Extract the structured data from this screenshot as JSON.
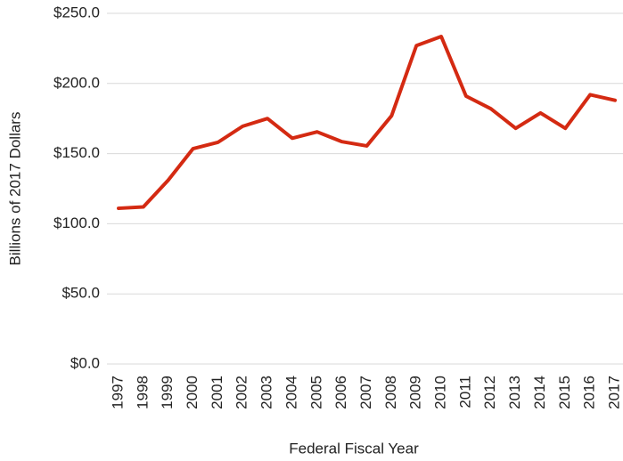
{
  "chart_data": {
    "type": "line",
    "xlabel": "Federal Fiscal Year",
    "ylabel": "Billions of 2017 Dollars",
    "categories": [
      "1997",
      "1998",
      "1999",
      "2000",
      "2001",
      "2002",
      "2003",
      "2004",
      "2005",
      "2006",
      "2007",
      "2008",
      "2009",
      "2010",
      "2011",
      "2012",
      "2013",
      "2014",
      "2015",
      "2016",
      "2017"
    ],
    "series": [
      {
        "color": "#d42a12",
        "values": [
          111,
          112,
          131,
          153.5,
          158,
          169.5,
          175,
          161,
          165.5,
          158.5,
          155.5,
          177,
          227,
          233.5,
          191,
          182,
          168,
          179,
          168,
          192,
          188
        ]
      }
    ],
    "ylim": [
      0,
      250
    ],
    "yticks": [
      {
        "value": 0,
        "label": "$0.0"
      },
      {
        "value": 50,
        "label": "$50.0"
      },
      {
        "value": 100,
        "label": "$100.0"
      },
      {
        "value": 150,
        "label": "$150.0"
      },
      {
        "value": 200,
        "label": "$200.0"
      },
      {
        "value": 250,
        "label": "$250.0"
      }
    ],
    "grid": true
  }
}
